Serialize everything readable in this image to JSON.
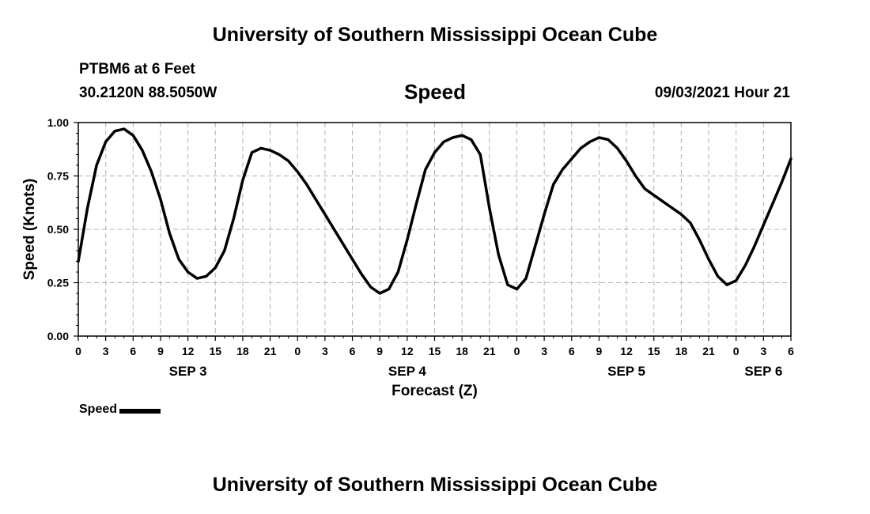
{
  "header": {
    "title": "University of Southern Mississippi Ocean Cube",
    "station": "PTBM6 at 6 Feet",
    "coords": "30.2120N  88.5050W",
    "datetime": "09/03/2021 Hour 21"
  },
  "footer": {
    "title": "University of Southern Mississippi Ocean Cube"
  },
  "legend": {
    "label": "Speed"
  },
  "chart_data": {
    "type": "line",
    "title": "Speed",
    "xlabel": "Forecast (Z)",
    "ylabel": "Speed (Knots)",
    "xlim": [
      0,
      78
    ],
    "ylim": [
      0,
      1
    ],
    "grid": true,
    "x_unit": "hours from 2021-09-03 00Z",
    "x_tick_values": [
      0,
      3,
      6,
      9,
      12,
      15,
      18,
      21,
      24,
      27,
      30,
      33,
      36,
      39,
      42,
      45,
      48,
      51,
      54,
      57,
      60,
      63,
      66,
      69,
      72,
      75,
      78
    ],
    "x_tick_labels": [
      "0",
      "3",
      "6",
      "9",
      "12",
      "15",
      "18",
      "21",
      "0",
      "3",
      "6",
      "9",
      "12",
      "15",
      "18",
      "21",
      "0",
      "3",
      "6",
      "9",
      "12",
      "15",
      "18",
      "21",
      "0",
      "3",
      "6"
    ],
    "y_tick_values": [
      0,
      0.25,
      0.5,
      0.75,
      1.0
    ],
    "y_tick_labels": [
      "0.00",
      "0.25",
      "0.50",
      "0.75",
      "1.00"
    ],
    "day_labels": [
      {
        "text": "SEP 3",
        "x": 12
      },
      {
        "text": "SEP 4",
        "x": 36
      },
      {
        "text": "SEP 5",
        "x": 60
      },
      {
        "text": "SEP 6",
        "x": 75
      }
    ],
    "series": [
      {
        "name": "Speed",
        "color": "#000000",
        "x": [
          0,
          1,
          2,
          3,
          4,
          5,
          6,
          7,
          8,
          9,
          10,
          11,
          12,
          13,
          14,
          15,
          16,
          17,
          18,
          19,
          20,
          21,
          22,
          23,
          24,
          25,
          26,
          27,
          28,
          29,
          30,
          31,
          32,
          33,
          34,
          35,
          36,
          37,
          38,
          39,
          40,
          41,
          42,
          43,
          44,
          45,
          46,
          47,
          48,
          49,
          50,
          51,
          52,
          53,
          54,
          55,
          56,
          57,
          58,
          59,
          60,
          61,
          62,
          63,
          64,
          65,
          66,
          67,
          68,
          69,
          70,
          71,
          72,
          73,
          74,
          75,
          76,
          77,
          78
        ],
        "values": [
          0.35,
          0.6,
          0.8,
          0.91,
          0.96,
          0.97,
          0.94,
          0.87,
          0.77,
          0.64,
          0.48,
          0.36,
          0.3,
          0.27,
          0.28,
          0.32,
          0.4,
          0.55,
          0.73,
          0.86,
          0.88,
          0.87,
          0.85,
          0.82,
          0.77,
          0.71,
          0.64,
          0.57,
          0.5,
          0.43,
          0.36,
          0.29,
          0.23,
          0.2,
          0.22,
          0.3,
          0.45,
          0.62,
          0.78,
          0.86,
          0.91,
          0.93,
          0.94,
          0.92,
          0.85,
          0.6,
          0.38,
          0.24,
          0.22,
          0.27,
          0.42,
          0.57,
          0.71,
          0.78,
          0.83,
          0.88,
          0.91,
          0.93,
          0.92,
          0.88,
          0.82,
          0.75,
          0.69,
          0.66,
          0.63,
          0.6,
          0.57,
          0.53,
          0.45,
          0.36,
          0.28,
          0.24,
          0.26,
          0.33,
          0.42,
          0.52,
          0.62,
          0.72,
          0.83
        ]
      }
    ]
  }
}
